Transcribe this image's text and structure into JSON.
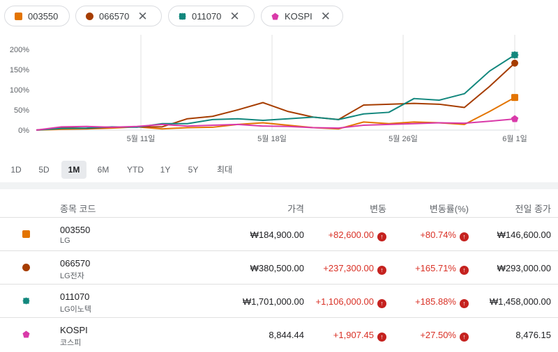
{
  "chips": [
    {
      "label": "003550",
      "color": "#e37400",
      "shape": "square",
      "removable": false
    },
    {
      "label": "066570",
      "color": "#a63d00",
      "shape": "circle",
      "removable": true
    },
    {
      "label": "011070",
      "color": "#12877d",
      "shape": "flower",
      "removable": true
    },
    {
      "label": "KOSPI",
      "color": "#d93aa9",
      "shape": "pentagon",
      "removable": true
    }
  ],
  "chart_data": {
    "type": "line",
    "y_ticks": [
      "200%",
      "150%",
      "100%",
      "50%",
      "0%"
    ],
    "ylim": [
      0,
      210
    ],
    "x_ticks": [
      "5월 11일",
      "5월 18일",
      "5월 26일",
      "6월 1일"
    ],
    "grid": true,
    "series": [
      {
        "name": "003550",
        "color": "#e37400",
        "values": [
          0,
          2,
          3,
          5,
          8,
          3,
          6,
          7,
          14,
          18,
          12,
          6,
          3,
          20,
          16,
          20,
          18,
          14,
          46,
          80.74
        ]
      },
      {
        "name": "066570",
        "color": "#a63d00",
        "values": [
          0,
          6,
          4,
          7,
          8,
          8,
          28,
          34,
          50,
          68,
          46,
          32,
          26,
          62,
          64,
          66,
          64,
          56,
          108,
          165.71
        ]
      },
      {
        "name": "011070",
        "color": "#12877d",
        "values": [
          0,
          4,
          5,
          8,
          7,
          16,
          16,
          26,
          28,
          24,
          28,
          32,
          26,
          40,
          44,
          78,
          74,
          90,
          146,
          185.88
        ]
      },
      {
        "name": "KOSPI",
        "color": "#d93aa9",
        "values": [
          0,
          8,
          9,
          7,
          9,
          14,
          10,
          12,
          14,
          10,
          9,
          6,
          5,
          12,
          14,
          16,
          18,
          17,
          22,
          27.5
        ]
      }
    ]
  },
  "ranges": [
    "1D",
    "5D",
    "1M",
    "6M",
    "YTD",
    "1Y",
    "5Y",
    "최대"
  ],
  "active_range": "1M",
  "table": {
    "headers": {
      "symbol": "종목 코드",
      "price": "가격",
      "change": "변동",
      "change_pct": "변동률(%)",
      "prev_close": "전일 종가"
    },
    "rows": [
      {
        "symbol": "003550",
        "name": "LG",
        "price": "₩184,900.00",
        "change": "+82,600.00",
        "change_pct": "+80.74%",
        "prev_close": "₩146,600.00",
        "color": "#e37400",
        "shape": "square"
      },
      {
        "symbol": "066570",
        "name": "LG전자",
        "price": "₩380,500.00",
        "change": "+237,300.00",
        "change_pct": "+165.71%",
        "prev_close": "₩293,000.00",
        "color": "#a63d00",
        "shape": "circle"
      },
      {
        "symbol": "011070",
        "name": "LG이노텍",
        "price": "₩1,701,000.00",
        "change": "+1,106,000.00",
        "change_pct": "+185.88%",
        "prev_close": "₩1,458,000.00",
        "color": "#12877d",
        "shape": "flower"
      },
      {
        "symbol": "KOSPI",
        "name": "코스피",
        "price": "8,844.44",
        "change": "+1,907.45",
        "change_pct": "+27.50%",
        "prev_close": "8,476.15",
        "color": "#d93aa9",
        "shape": "pentagon"
      }
    ],
    "up_icon": "arrow-up-icon"
  }
}
